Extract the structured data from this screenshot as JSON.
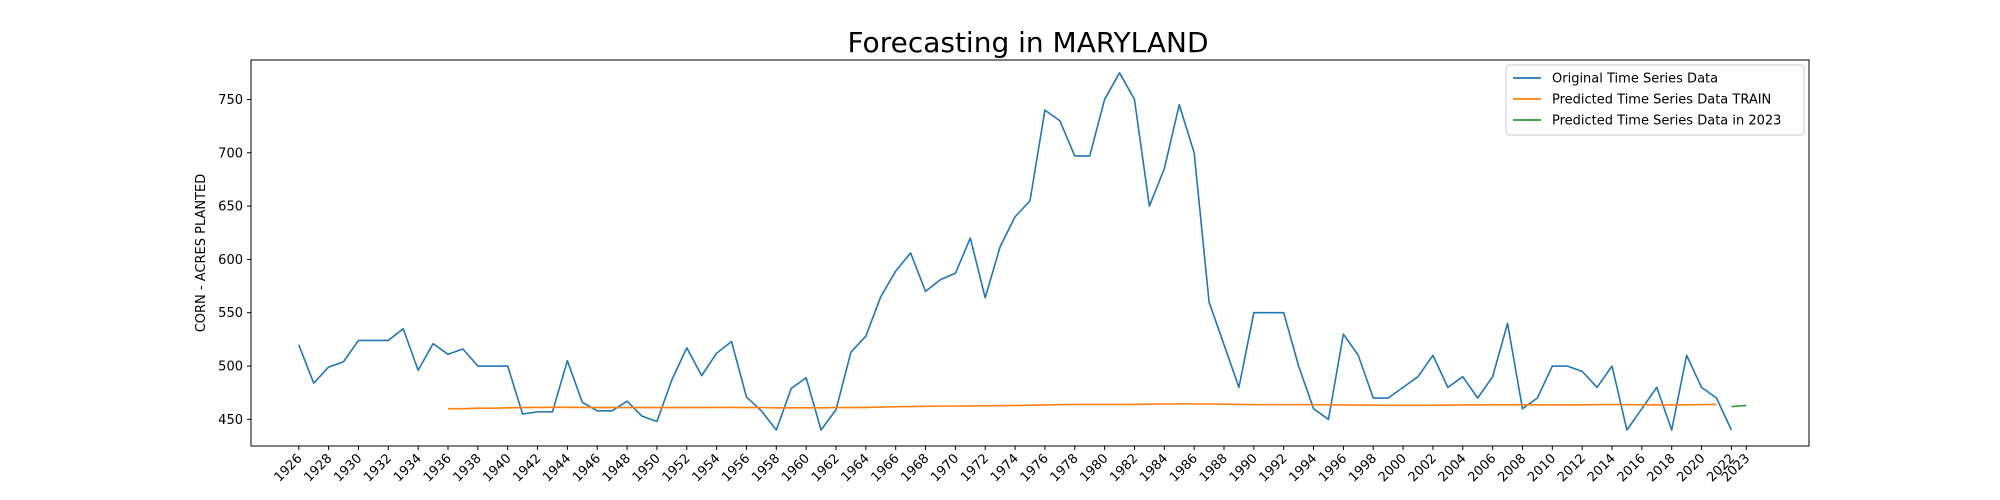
{
  "chart_data": {
    "type": "line",
    "title": "Forecasting in MARYLAND",
    "xlabel": "",
    "ylabel": "CORN - ACRES PLANTED",
    "xlim": [
      1922.8,
      2027.2
    ],
    "ylim": [
      425,
      787
    ],
    "grid": false,
    "legend_position": "top-right",
    "x_ticks": [
      1926,
      1928,
      1930,
      1932,
      1934,
      1936,
      1938,
      1940,
      1942,
      1944,
      1946,
      1948,
      1950,
      1952,
      1954,
      1956,
      1958,
      1960,
      1962,
      1964,
      1966,
      1968,
      1970,
      1972,
      1974,
      1976,
      1978,
      1980,
      1982,
      1984,
      1986,
      1988,
      1990,
      1992,
      1994,
      1996,
      1998,
      2000,
      2002,
      2004,
      2006,
      2008,
      2010,
      2012,
      2014,
      2016,
      2018,
      2020,
      2022,
      2023
    ],
    "y_ticks": [
      450,
      500,
      550,
      600,
      650,
      700,
      750
    ],
    "series": [
      {
        "name": "Original Time Series Data",
        "color": "#1f77b4",
        "x": [
          1926,
          1927,
          1928,
          1929,
          1930,
          1931,
          1932,
          1933,
          1934,
          1935,
          1936,
          1937,
          1938,
          1939,
          1940,
          1941,
          1942,
          1943,
          1944,
          1945,
          1946,
          1947,
          1948,
          1949,
          1950,
          1951,
          1952,
          1953,
          1954,
          1955,
          1956,
          1957,
          1958,
          1959,
          1960,
          1961,
          1962,
          1963,
          1964,
          1965,
          1966,
          1967,
          1968,
          1969,
          1970,
          1971,
          1972,
          1973,
          1974,
          1975,
          1976,
          1977,
          1978,
          1979,
          1980,
          1981,
          1982,
          1983,
          1984,
          1985,
          1986,
          1987,
          1988,
          1989,
          1990,
          1991,
          1992,
          1993,
          1994,
          1995,
          1996,
          1997,
          1998,
          1999,
          2000,
          2001,
          2002,
          2003,
          2004,
          2005,
          2006,
          2007,
          2008,
          2009,
          2010,
          2011,
          2012,
          2013,
          2014,
          2015,
          2016,
          2017,
          2018,
          2019,
          2020,
          2021,
          2022
        ],
        "values": [
          520,
          484,
          499,
          504,
          524,
          524,
          524,
          535,
          496,
          521,
          511,
          516,
          500,
          500,
          500,
          455,
          457,
          457,
          505,
          466,
          458,
          458,
          467,
          453,
          448,
          487,
          517,
          491,
          512,
          523,
          471,
          458,
          440,
          479,
          489,
          440,
          459,
          513,
          528,
          565,
          589,
          606,
          570,
          581,
          587,
          620,
          564,
          612,
          640,
          655,
          740,
          730,
          697,
          697,
          750,
          775,
          750,
          650,
          685,
          745,
          700,
          560,
          520,
          480,
          550,
          550,
          550,
          500,
          460,
          450,
          530,
          510,
          470,
          470,
          480,
          490,
          510,
          480,
          490,
          470,
          490,
          540,
          460,
          470,
          500,
          500,
          495,
          480,
          500,
          440,
          460,
          480,
          440,
          510,
          480,
          470,
          440
        ]
      },
      {
        "name": "Predicted Time Series Data TRAIN",
        "color": "#ff7f0e",
        "x": [
          1936,
          1937,
          1938,
          1939,
          1940,
          1941,
          1942,
          1943,
          1944,
          1945,
          1946,
          1947,
          1948,
          1949,
          1950,
          1951,
          1952,
          1953,
          1954,
          1955,
          1956,
          1957,
          1958,
          1959,
          1960,
          1961,
          1962,
          1963,
          1964,
          1965,
          1966,
          1967,
          1968,
          1969,
          1970,
          1971,
          1972,
          1973,
          1974,
          1975,
          1976,
          1977,
          1978,
          1979,
          1980,
          1981,
          1982,
          1983,
          1984,
          1985,
          1986,
          1987,
          1988,
          1989,
          1990,
          1991,
          1992,
          1993,
          1994,
          1995,
          1996,
          1997,
          1998,
          1999,
          2000,
          2001,
          2002,
          2003,
          2004,
          2005,
          2006,
          2007,
          2008,
          2009,
          2010,
          2011,
          2012,
          2013,
          2014,
          2015,
          2016,
          2017,
          2018,
          2019,
          2020,
          2021
        ],
        "values": [
          460,
          460,
          460.5,
          460.5,
          460.8,
          461,
          461.2,
          461.3,
          461.3,
          461.2,
          461,
          461,
          461,
          461,
          461,
          461,
          461,
          461,
          461.2,
          461.2,
          461,
          461,
          460.8,
          460.8,
          460.8,
          460.8,
          461,
          461,
          461.2,
          461.5,
          461.8,
          462,
          462.2,
          462.4,
          462.5,
          462.6,
          462.7,
          462.8,
          463,
          463.2,
          463.5,
          463.8,
          464,
          464,
          464,
          464,
          464,
          464.2,
          464.4,
          464.5,
          464.5,
          464.4,
          464.2,
          464,
          463.8,
          463.8,
          463.8,
          463.8,
          463.7,
          463.6,
          463.5,
          463.4,
          463.3,
          463.2,
          463.2,
          463.2,
          463.2,
          463.4,
          463.5,
          463.5,
          463.6,
          463.6,
          463.6,
          463.6,
          463.5,
          463.5,
          463.6,
          463.8,
          463.9,
          463.8,
          463.6,
          463.5,
          463.5,
          463.6,
          463.8,
          464
        ]
      },
      {
        "name": "Predicted Time Series Data in 2023",
        "color": "#2ca02c",
        "x": [
          2022,
          2023
        ],
        "values": [
          462,
          463
        ]
      }
    ]
  }
}
